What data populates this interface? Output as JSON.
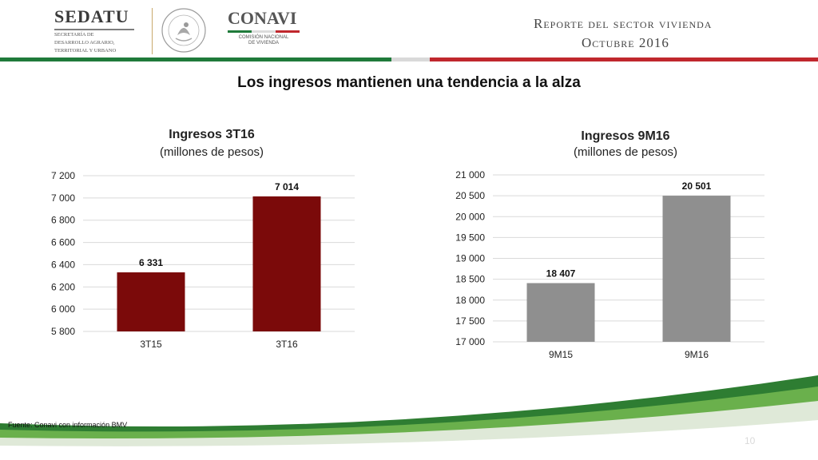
{
  "header": {
    "sedatu_name": "SEDATU",
    "sedatu_line1": "SECRETARÍA DE",
    "sedatu_line2": "DESARROLLO AGRARIO,",
    "sedatu_line3": "TERRITORIAL Y URBANO",
    "conavi_name": "CONAVI",
    "conavi_line1": "COMISIÓN NACIONAL",
    "conavi_line2": "DE VIVIENDA",
    "seal_text": "ESTADOS UNIDOS MEXICANOS",
    "report_title": "Reporte del sector vivienda",
    "report_date": "Octubre 2016",
    "colors": {
      "green": "#1f7a3a",
      "red": "#c0272d",
      "gray": "#bdbdbd"
    }
  },
  "slide": {
    "title": "Los ingresos mantienen una tendencia a la alza",
    "source": "Fuente: Conavi con información BMV",
    "page": "10"
  },
  "chart_data": [
    {
      "type": "bar",
      "title": "Ingresos 3T16",
      "subtitle": "(millones de pesos)",
      "categories": [
        "3T15",
        "3T16"
      ],
      "values": [
        6331,
        7014
      ],
      "data_labels": [
        "6 331",
        "7 014"
      ],
      "ylim": [
        5800,
        7200
      ],
      "yticks": [
        5800,
        6000,
        6200,
        6400,
        6600,
        6800,
        7000,
        7200
      ],
      "ytick_labels": [
        "5 800",
        "6 000",
        "6 200",
        "6 400",
        "6 600",
        "6 800",
        "7 000",
        "7 200"
      ],
      "grid": true,
      "color": "#7b0a0a"
    },
    {
      "type": "bar",
      "title": "Ingresos 9M16",
      "subtitle": "(millones de pesos)",
      "categories": [
        "9M15",
        "9M16"
      ],
      "values": [
        18407,
        20501
      ],
      "data_labels": [
        "18 407",
        "20 501"
      ],
      "ylim": [
        17000,
        21000
      ],
      "yticks": [
        17000,
        17500,
        18000,
        18500,
        19000,
        19500,
        20000,
        20500,
        21000
      ],
      "ytick_labels": [
        "17 000",
        "17 500",
        "18 000",
        "18 500",
        "19 000",
        "19 500",
        "20 000",
        "20 500",
        "21 000"
      ],
      "grid": true,
      "color": "#8f8f8f"
    }
  ]
}
